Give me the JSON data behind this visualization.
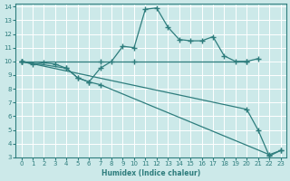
{
  "xlabel": "Humidex (Indice chaleur)",
  "bg_color": "#cce9e9",
  "grid_color": "#ffffff",
  "line_color": "#2e7d7d",
  "xlim": [
    -0.5,
    23.5
  ],
  "ylim": [
    3,
    14.2
  ],
  "xticks": [
    0,
    1,
    2,
    3,
    4,
    5,
    6,
    7,
    8,
    9,
    10,
    11,
    12,
    13,
    14,
    15,
    16,
    17,
    18,
    19,
    20,
    21,
    22,
    23
  ],
  "yticks": [
    3,
    4,
    5,
    6,
    7,
    8,
    9,
    10,
    11,
    12,
    13,
    14
  ],
  "line1_x": [
    0,
    1,
    2,
    3,
    4,
    5,
    6,
    7,
    8,
    9,
    10,
    11,
    12,
    13,
    14,
    15,
    16,
    17,
    18,
    19,
    20,
    21
  ],
  "line1_y": [
    10,
    9.8,
    9.9,
    9.8,
    9.5,
    8.8,
    8.5,
    9.5,
    10.0,
    11.1,
    11.0,
    13.8,
    13.9,
    12.5,
    11.6,
    11.5,
    11.5,
    11.8,
    10.4,
    10.0,
    10.0,
    10.2
  ],
  "line2_x": [
    0,
    7,
    10,
    20
  ],
  "line2_y": [
    10,
    10.0,
    10.0,
    10.0
  ],
  "line3_x": [
    0,
    20,
    21,
    22,
    23
  ],
  "line3_y": [
    10,
    6.5,
    5.0,
    3.1,
    3.5
  ],
  "line4_x": [
    0,
    4,
    5,
    6,
    7,
    22,
    23
  ],
  "line4_y": [
    10,
    9.5,
    8.8,
    8.5,
    8.3,
    3.2,
    3.5
  ]
}
